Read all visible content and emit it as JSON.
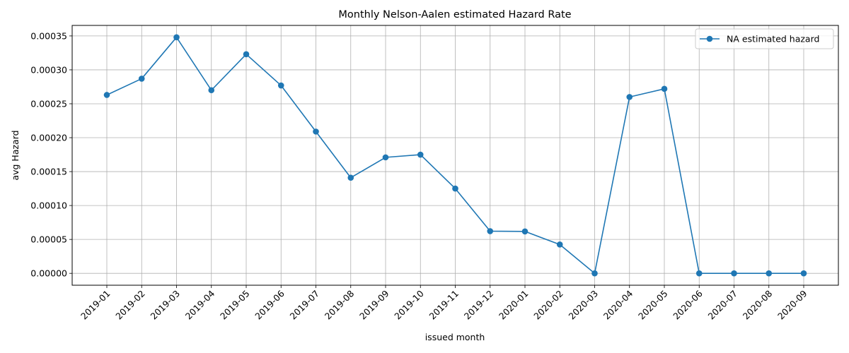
{
  "chart_data": {
    "type": "line",
    "title": "Monthly Nelson-Aalen estimated Hazard Rate",
    "xlabel": "issued month",
    "ylabel": "avg Hazard",
    "categories": [
      "2019-01",
      "2019-02",
      "2019-03",
      "2019-04",
      "2019-05",
      "2019-06",
      "2019-07",
      "2019-08",
      "2019-09",
      "2019-10",
      "2019-11",
      "2019-12",
      "2020-01",
      "2020-02",
      "2020-03",
      "2020-04",
      "2020-05",
      "2020-06",
      "2020-07",
      "2020-08",
      "2020-09"
    ],
    "series": [
      {
        "name": "NA estimated hazard",
        "color": "#1f77b4",
        "marker": "circle",
        "values": [
          0.000263,
          0.000287,
          0.000348,
          0.00027,
          0.000323,
          0.000277,
          0.000209,
          0.000141,
          0.000171,
          0.000175,
          0.000125,
          6.22e-05,
          6.18e-05,
          4.25e-05,
          0.0,
          0.00026,
          0.000272,
          0.0,
          0.0,
          0.0,
          0.0
        ]
      }
    ],
    "ylim": [
      -1.75e-05,
      0.0003655
    ],
    "yticks": [
      "0.00000",
      "0.00005",
      "0.00010",
      "0.00015",
      "0.00020",
      "0.00025",
      "0.00030",
      "0.00035"
    ],
    "ytick_values": [
      0,
      5e-05,
      0.0001,
      0.00015,
      0.0002,
      0.00025,
      0.0003,
      0.00035
    ],
    "grid": true,
    "legend_position": "top-right"
  }
}
